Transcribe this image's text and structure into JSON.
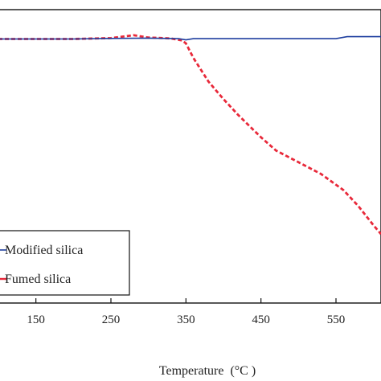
{
  "chart_data": {
    "type": "line",
    "title": "",
    "xlabel": "Temperature  (°C )",
    "ylabel": "",
    "xlim": [
      100,
      610
    ],
    "ylim": [
      0,
      1
    ],
    "x_ticks": [
      "150",
      "250",
      "350",
      "450",
      "550"
    ],
    "grid": false,
    "legend_position": "bottom-left",
    "series": [
      {
        "name": "Modified silica",
        "color": "#1f3f9f",
        "style": "solid",
        "x": [
          100,
          200,
          250,
          300,
          340,
          350,
          360,
          400,
          450,
          500,
          550,
          565,
          600,
          610
        ],
        "y": [
          0.9,
          0.9,
          0.902,
          0.903,
          0.901,
          0.897,
          0.901,
          0.901,
          0.901,
          0.901,
          0.901,
          0.908,
          0.908,
          0.908
        ]
      },
      {
        "name": "Fumed silica",
        "color": "#e8293a",
        "style": "dashed",
        "x": [
          100,
          200,
          250,
          280,
          300,
          330,
          345,
          350,
          360,
          380,
          400,
          420,
          450,
          470,
          500,
          530,
          560,
          580,
          600,
          610
        ],
        "y": [
          0.9,
          0.9,
          0.903,
          0.913,
          0.905,
          0.902,
          0.895,
          0.885,
          0.835,
          0.755,
          0.695,
          0.64,
          0.565,
          0.52,
          0.48,
          0.44,
          0.385,
          0.33,
          0.265,
          0.235
        ]
      }
    ]
  }
}
